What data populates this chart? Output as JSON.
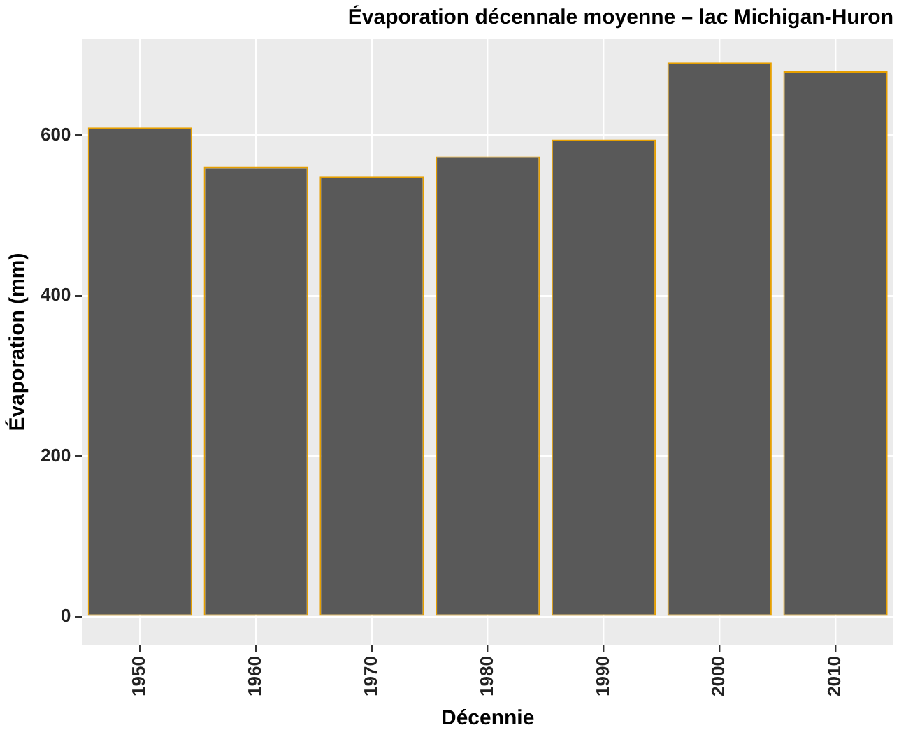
{
  "chart_data": {
    "type": "bar",
    "title": "Évaporation décennale moyenne – lac Michigan-Huron",
    "xlabel": "Décennie",
    "ylabel": "Évaporation (mm)",
    "categories": [
      "1950",
      "1960",
      "1970",
      "1980",
      "1990",
      "2000",
      "2010"
    ],
    "values": [
      610,
      561,
      549,
      574,
      595,
      691,
      680
    ],
    "color": "#595959",
    "ylim": [
      -35,
      720
    ],
    "yticks": [
      0,
      200,
      400,
      600
    ],
    "grid": true
  }
}
